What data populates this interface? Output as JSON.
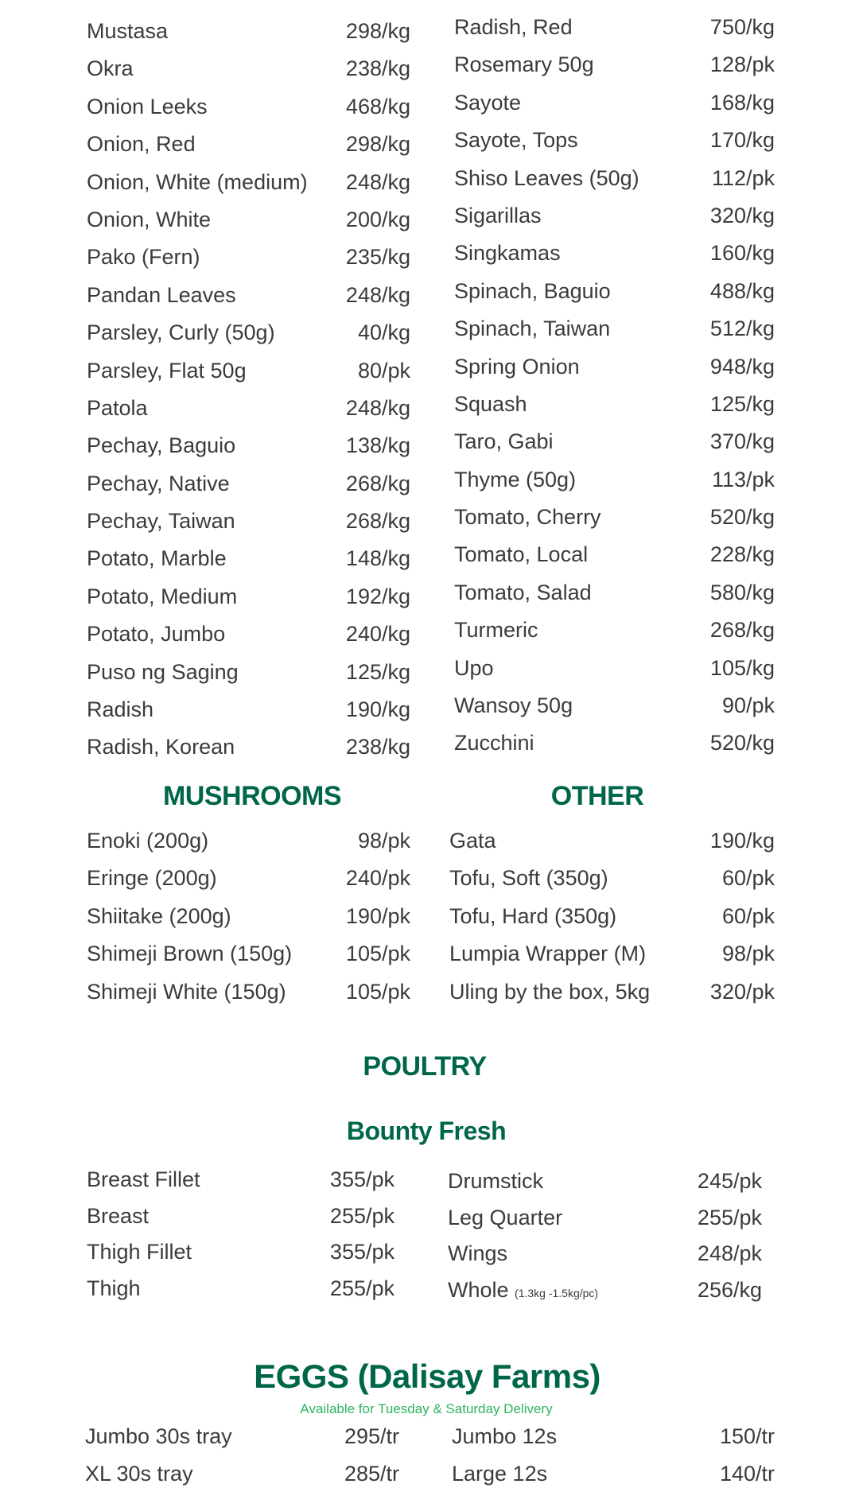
{
  "colors": {
    "heading": "#00664a",
    "subtitle": "#2db35d",
    "text": "#3b3b3b"
  },
  "vegetables_left": [
    {
      "name": "Mustasa",
      "price": "298/kg"
    },
    {
      "name": "Okra",
      "price": "238/kg"
    },
    {
      "name": "Onion Leeks",
      "price": "468/kg"
    },
    {
      "name": "Onion, Red",
      "price": "298/kg"
    },
    {
      "name": "Onion, White (medium)",
      "price": "248/kg"
    },
    {
      "name": "Onion, White",
      "price": "200/kg"
    },
    {
      "name": "Pako (Fern)",
      "price": "235/kg"
    },
    {
      "name": "Pandan Leaves",
      "price": "248/kg"
    },
    {
      "name": "Parsley, Curly (50g)",
      "price": "40/kg"
    },
    {
      "name": "Parsley, Flat 50g",
      "price": "80/pk"
    },
    {
      "name": "Patola",
      "price": "248/kg"
    },
    {
      "name": "Pechay, Baguio",
      "price": "138/kg"
    },
    {
      "name": "Pechay, Native",
      "price": "268/kg"
    },
    {
      "name": "Pechay, Taiwan",
      "price": "268/kg"
    },
    {
      "name": "Potato, Marble",
      "price": "148/kg"
    },
    {
      "name": "Potato, Medium",
      "price": "192/kg"
    },
    {
      "name": "Potato, Jumbo",
      "price": "240/kg"
    },
    {
      "name": "Puso ng Saging",
      "price": "125/kg"
    },
    {
      "name": "Radish",
      "price": "190/kg"
    },
    {
      "name": "Radish, Korean",
      "price": "238/kg"
    }
  ],
  "vegetables_right": [
    {
      "name": "Radish, Red",
      "price": "750/kg"
    },
    {
      "name": "Rosemary 50g",
      "price": "128/pk"
    },
    {
      "name": "Sayote",
      "price": "168/kg"
    },
    {
      "name": "Sayote, Tops",
      "price": "170/kg"
    },
    {
      "name": "Shiso Leaves (50g)",
      "price": "112/pk"
    },
    {
      "name": "Sigarillas",
      "price": "320/kg"
    },
    {
      "name": "Singkamas",
      "price": "160/kg"
    },
    {
      "name": "Spinach, Baguio",
      "price": "488/kg"
    },
    {
      "name": "Spinach, Taiwan",
      "price": "512/kg"
    },
    {
      "name": "Spring Onion",
      "price": "948/kg"
    },
    {
      "name": "Squash",
      "price": "125/kg"
    },
    {
      "name": "Taro, Gabi",
      "price": "370/kg"
    },
    {
      "name": "Thyme (50g)",
      "price": "113/pk"
    },
    {
      "name": "Tomato, Cherry",
      "price": "520/kg"
    },
    {
      "name": "Tomato, Local",
      "price": "228/kg"
    },
    {
      "name": "Tomato, Salad",
      "price": "580/kg"
    },
    {
      "name": "Turmeric",
      "price": "268/kg"
    },
    {
      "name": "Upo",
      "price": "105/kg"
    },
    {
      "name": "Wansoy 50g",
      "price": "90/pk"
    },
    {
      "name": "Zucchini",
      "price": "520/kg"
    }
  ],
  "mushrooms": {
    "title": "MUSHROOMS",
    "items": [
      {
        "name": "Enoki (200g)",
        "price": "98/pk"
      },
      {
        "name": "Eringe (200g)",
        "price": "240/pk"
      },
      {
        "name": "Shiitake (200g)",
        "price": "190/pk"
      },
      {
        "name": "Shimeji Brown (150g)",
        "price": "105/pk"
      },
      {
        "name": "Shimeji White (150g)",
        "price": "105/pk"
      }
    ]
  },
  "other": {
    "title": "OTHER",
    "items": [
      {
        "name": "Gata",
        "price": "190/kg"
      },
      {
        "name": "Tofu, Soft (350g)",
        "price": "60/pk"
      },
      {
        "name": "Tofu, Hard (350g)",
        "price": "60/pk"
      },
      {
        "name": "Lumpia Wrapper (M)",
        "price": "98/pk"
      },
      {
        "name": "Uling by the box, 5kg",
        "price": "320/pk"
      }
    ]
  },
  "poultry": {
    "title": "POULTRY",
    "brand": "Bounty Fresh",
    "left": [
      {
        "name": "Breast Fillet",
        "price": "355/pk"
      },
      {
        "name": "Breast",
        "price": "255/pk"
      },
      {
        "name": "Thigh Fillet",
        "price": "355/pk"
      },
      {
        "name": "Thigh",
        "price": "255/pk"
      }
    ],
    "right": [
      {
        "name": "Drumstick",
        "price": "245/pk"
      },
      {
        "name": "Leg Quarter",
        "price": "255/pk"
      },
      {
        "name": "Wings",
        "price": "248/pk"
      },
      {
        "name": "Whole",
        "note": "(1.3kg -1.5kg/pc)",
        "price": "256/kg"
      }
    ]
  },
  "eggs": {
    "title": "EGGS (Dalisay Farms)",
    "subtitle": "Available for Tuesday & Saturday Delivery",
    "left": [
      {
        "name": "Jumbo 30s tray",
        "price": "295/tr"
      },
      {
        "name": "XL 30s tray",
        "price": "285/tr"
      }
    ],
    "right": [
      {
        "name": "Jumbo 12s",
        "price": "150/tr"
      },
      {
        "name": "Large 12s",
        "price": "140/tr"
      }
    ]
  }
}
